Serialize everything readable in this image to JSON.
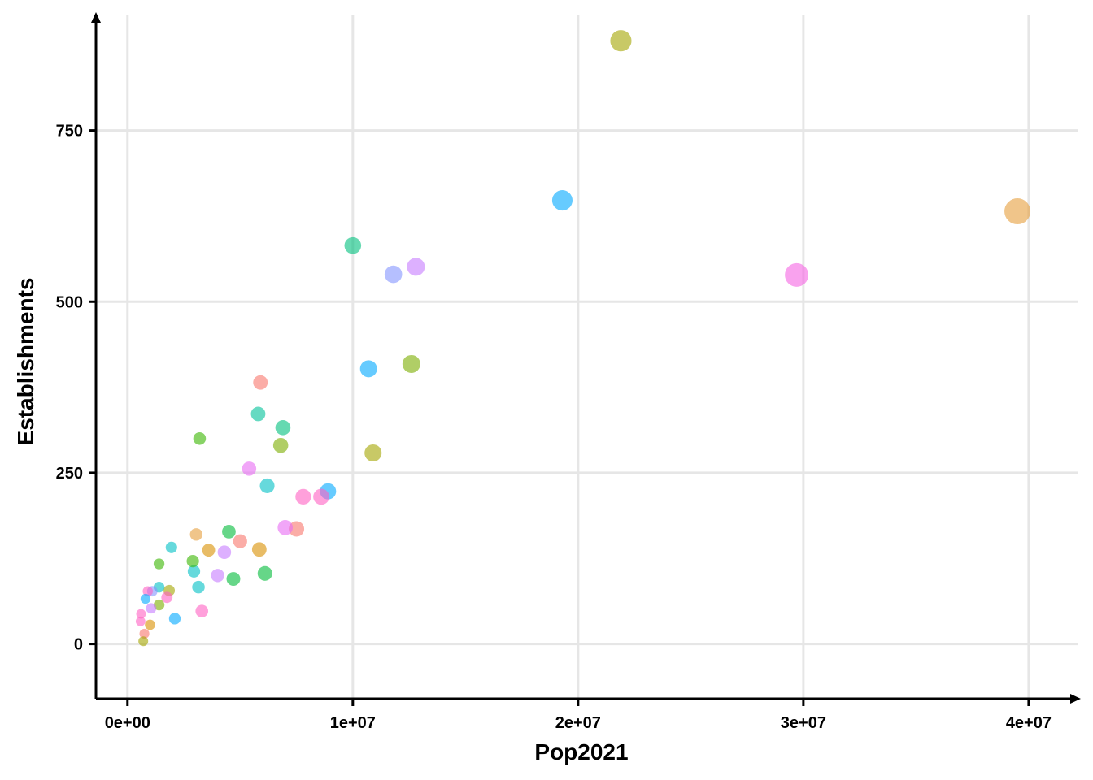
{
  "chart_data": {
    "type": "scatter",
    "title": "",
    "xlabel": "Pop2021",
    "ylabel": "Establishments",
    "xlim": [
      -1400000,
      41700000
    ],
    "ylim": [
      -80,
      905
    ],
    "x_ticks": [
      0,
      10000000,
      20000000,
      30000000,
      40000000
    ],
    "x_tick_labels": [
      "0e+00",
      "1e+07",
      "2e+07",
      "3e+07",
      "4e+07"
    ],
    "y_ticks": [
      0,
      250,
      500,
      750
    ],
    "y_tick_labels": [
      "0",
      "250",
      "500",
      "750"
    ],
    "grid": true,
    "legend": "none",
    "size_encoding": "Pop2021",
    "opacity": 0.6,
    "points": [
      {
        "x": 39500000,
        "y": 632,
        "color": "#E69F3C"
      },
      {
        "x": 29700000,
        "y": 539,
        "color": "#F564E3"
      },
      {
        "x": 21900000,
        "y": 881,
        "color": "#A3A500"
      },
      {
        "x": 19300000,
        "y": 648,
        "color": "#00A9FF"
      },
      {
        "x": 12800000,
        "y": 551,
        "color": "#C77CFF"
      },
      {
        "x": 12600000,
        "y": 409,
        "color": "#7CAE00"
      },
      {
        "x": 11800000,
        "y": 540,
        "color": "#8494FF"
      },
      {
        "x": 10900000,
        "y": 279,
        "color": "#A3A500"
      },
      {
        "x": 10700000,
        "y": 402,
        "color": "#00A9FF"
      },
      {
        "x": 10000000,
        "y": 582,
        "color": "#00BF7D"
      },
      {
        "x": 8900000,
        "y": 223,
        "color": "#00A9FF"
      },
      {
        "x": 8600000,
        "y": 215,
        "color": "#FF61C3"
      },
      {
        "x": 7800000,
        "y": 215,
        "color": "#FF61C3"
      },
      {
        "x": 7500000,
        "y": 168,
        "color": "#F8766D"
      },
      {
        "x": 7000000,
        "y": 170,
        "color": "#E76BF3"
      },
      {
        "x": 6900000,
        "y": 316,
        "color": "#00BF7D"
      },
      {
        "x": 6800000,
        "y": 290,
        "color": "#7CAE00"
      },
      {
        "x": 6200000,
        "y": 231,
        "color": "#00BFC4"
      },
      {
        "x": 6100000,
        "y": 103,
        "color": "#00BA38"
      },
      {
        "x": 5900000,
        "y": 382,
        "color": "#F8766D"
      },
      {
        "x": 5850000,
        "y": 138,
        "color": "#D89000"
      },
      {
        "x": 5800000,
        "y": 336,
        "color": "#00C19A"
      },
      {
        "x": 5400000,
        "y": 256,
        "color": "#E76BF3"
      },
      {
        "x": 5000000,
        "y": 150,
        "color": "#F8766D"
      },
      {
        "x": 4700000,
        "y": 95,
        "color": "#00BA38"
      },
      {
        "x": 4500000,
        "y": 164,
        "color": "#00BA38"
      },
      {
        "x": 4300000,
        "y": 134,
        "color": "#C77CFF"
      },
      {
        "x": 4000000,
        "y": 100,
        "color": "#C77CFF"
      },
      {
        "x": 3600000,
        "y": 137,
        "color": "#D89000"
      },
      {
        "x": 3300000,
        "y": 48,
        "color": "#FF61C3"
      },
      {
        "x": 3200000,
        "y": 300,
        "color": "#39B600"
      },
      {
        "x": 3150000,
        "y": 83,
        "color": "#00BFC4"
      },
      {
        "x": 3050000,
        "y": 160,
        "color": "#E69F3C"
      },
      {
        "x": 2950000,
        "y": 106,
        "color": "#00BFC4"
      },
      {
        "x": 2900000,
        "y": 121,
        "color": "#39B600"
      },
      {
        "x": 2100000,
        "y": 37,
        "color": "#00A9FF"
      },
      {
        "x": 1950000,
        "y": 141,
        "color": "#00BFC4"
      },
      {
        "x": 1850000,
        "y": 78,
        "color": "#A3A500"
      },
      {
        "x": 1750000,
        "y": 68,
        "color": "#FF61C3"
      },
      {
        "x": 1400000,
        "y": 117,
        "color": "#39B600"
      },
      {
        "x": 1400000,
        "y": 83,
        "color": "#00BFC4"
      },
      {
        "x": 1400000,
        "y": 57,
        "color": "#7CAE00"
      },
      {
        "x": 1100000,
        "y": 77,
        "color": "#8494FF"
      },
      {
        "x": 1050000,
        "y": 52,
        "color": "#C77CFF"
      },
      {
        "x": 1000000,
        "y": 28,
        "color": "#D89000"
      },
      {
        "x": 900000,
        "y": 77,
        "color": "#FF61C3"
      },
      {
        "x": 800000,
        "y": 66,
        "color": "#00A9FF"
      },
      {
        "x": 750000,
        "y": 15,
        "color": "#F8766D"
      },
      {
        "x": 700000,
        "y": 4,
        "color": "#A3A500"
      },
      {
        "x": 600000,
        "y": 44,
        "color": "#FF61C3"
      },
      {
        "x": 580000,
        "y": 33,
        "color": "#FF61C3"
      }
    ]
  }
}
